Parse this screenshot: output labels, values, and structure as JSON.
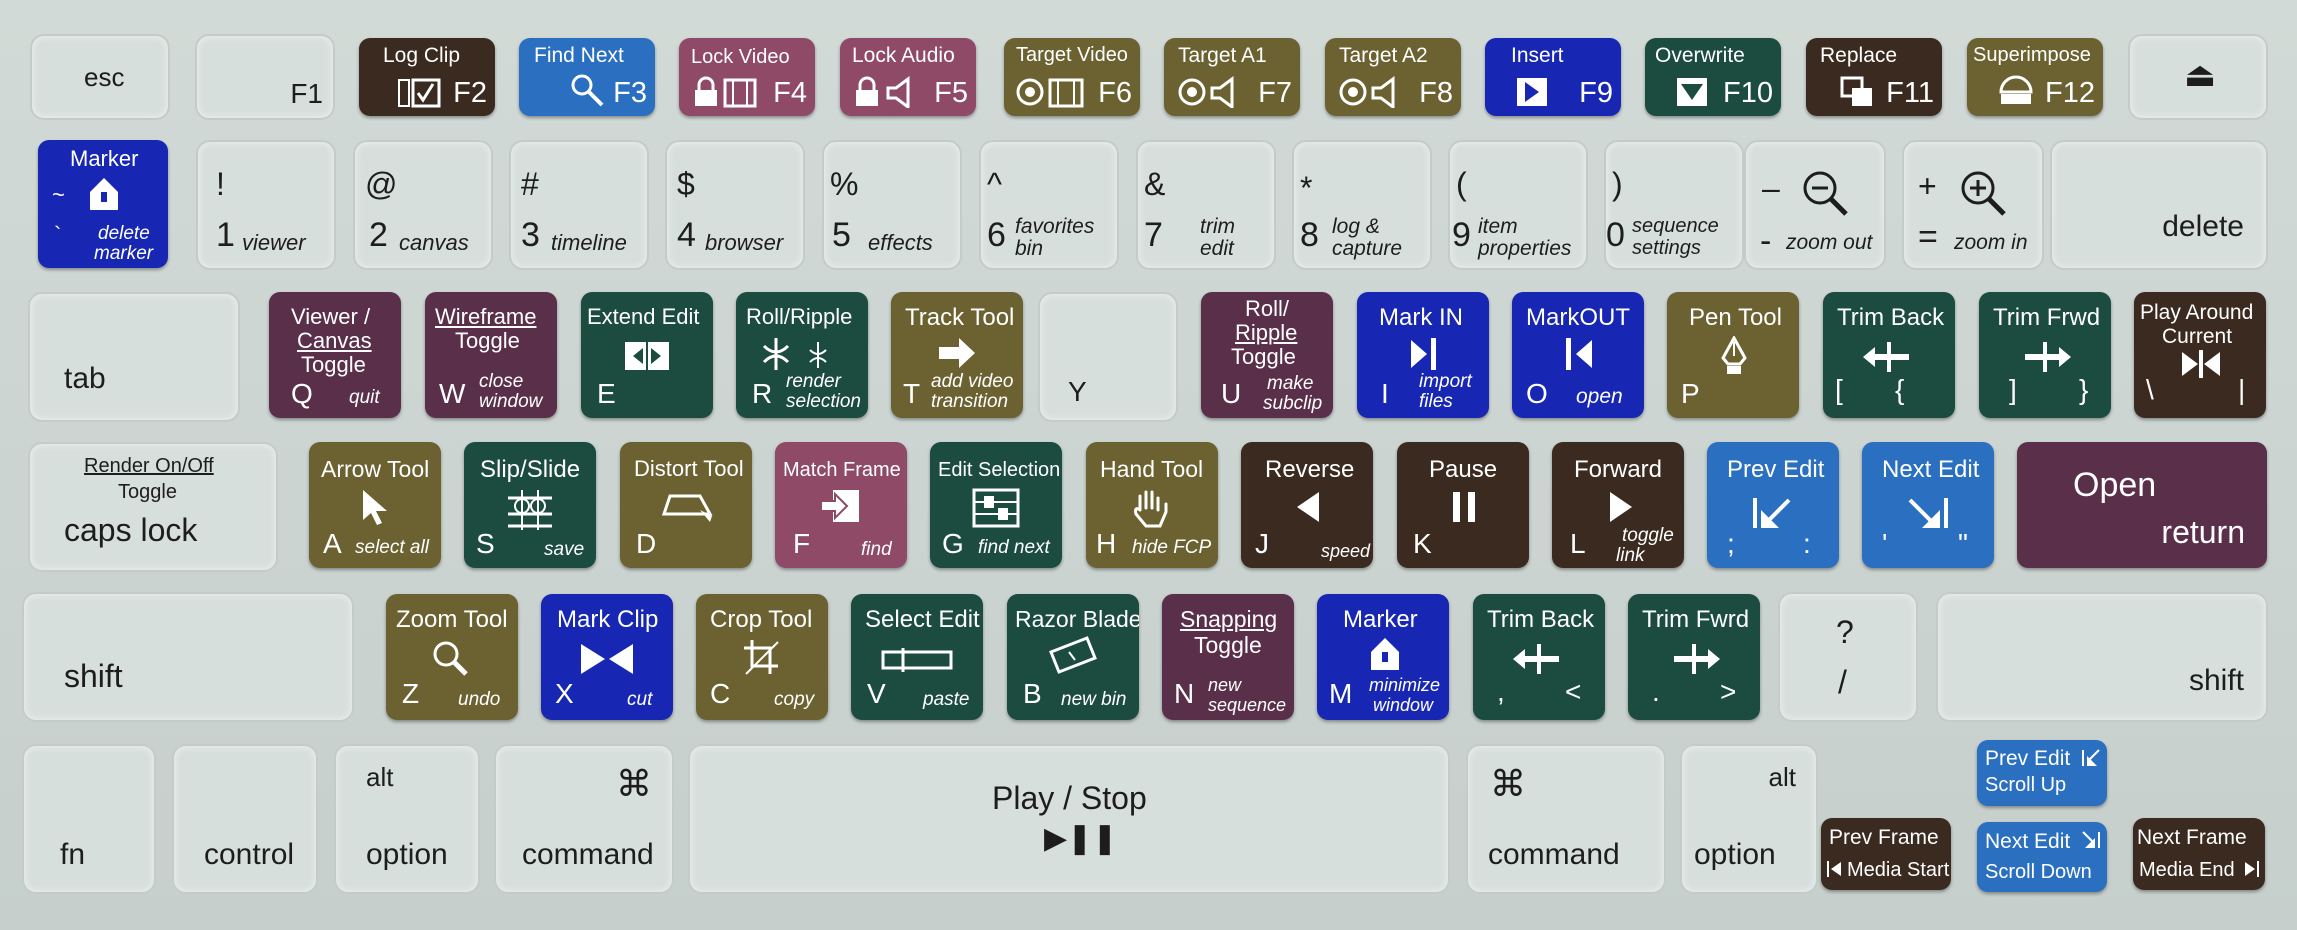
{
  "row_fn": {
    "esc": "esc",
    "f1": "F1",
    "f2": {
      "title": "Log Clip",
      "key": "F2"
    },
    "f3": {
      "title": "Find Next",
      "key": "F3"
    },
    "f4": {
      "title": "Lock Video",
      "key": "F4"
    },
    "f5": {
      "title": "Lock Audio",
      "key": "F5"
    },
    "f6": {
      "title": "Target Video",
      "key": "F6"
    },
    "f7": {
      "title": "Target A1",
      "key": "F7"
    },
    "f8": {
      "title": "Target A2",
      "key": "F8"
    },
    "f9": {
      "title": "Insert",
      "key": "F9"
    },
    "f10": {
      "title": "Overwrite",
      "key": "F10"
    },
    "f11": {
      "title": "Replace",
      "key": "F11"
    },
    "f12": {
      "title": "Superimpose",
      "key": "F12"
    },
    "eject": "⏏"
  },
  "row_num": {
    "tilde": {
      "title": "Marker",
      "top": "~",
      "bottom": "`",
      "sub1": "delete",
      "sub2": "marker"
    },
    "k1": {
      "top": "!",
      "key": "1",
      "sub": "viewer"
    },
    "k2": {
      "top": "@",
      "key": "2",
      "sub": "canvas"
    },
    "k3": {
      "top": "#",
      "key": "3",
      "sub": "timeline"
    },
    "k4": {
      "top": "$",
      "key": "4",
      "sub": "browser"
    },
    "k5": {
      "top": "%",
      "key": "5",
      "sub": "effects"
    },
    "k6": {
      "top": "^",
      "key": "6",
      "sub1": "favorites",
      "sub2": "bin"
    },
    "k7": {
      "top": "&",
      "key": "7",
      "sub1": "trim",
      "sub2": "edit"
    },
    "k8": {
      "top": "*",
      "key": "8",
      "sub1": "log &",
      "sub2": "capture"
    },
    "k9": {
      "top": "(",
      "key": "9",
      "sub1": "item",
      "sub2": "properties"
    },
    "k0": {
      "top": ")",
      "key": "0",
      "sub1": "sequence",
      "sub2": "settings"
    },
    "minus": {
      "top": "–",
      "key": "-",
      "sub": "zoom out"
    },
    "plus": {
      "top": "+",
      "key": "=",
      "sub": "zoom in"
    },
    "delete": "delete"
  },
  "row_q": {
    "tab": "tab",
    "q": {
      "t1": "Viewer /",
      "t2": "Canvas",
      "t3": "Toggle",
      "key": "Q",
      "sub": "quit"
    },
    "w": {
      "t1": "Wireframe",
      "t2": "Toggle",
      "key": "W",
      "sub1": "close",
      "sub2": "window"
    },
    "e": {
      "title": "Extend Edit",
      "key": "E"
    },
    "r": {
      "title": "Roll/Ripple",
      "key": "R",
      "sub1": "render",
      "sub2": "selection"
    },
    "t": {
      "title": "Track Tool",
      "key": "T",
      "sub1": "add video",
      "sub2": "transition"
    },
    "y": "Y",
    "u": {
      "t1": "Roll/",
      "t2": "Ripple",
      "t3": "Toggle",
      "key": "U",
      "sub1": "make",
      "sub2": "subclip"
    },
    "i": {
      "title": "Mark IN",
      "key": "I",
      "sub1": "import",
      "sub2": "files"
    },
    "o": {
      "title": "MarkOUT",
      "key": "O",
      "sub": "open"
    },
    "p": {
      "title": "Pen Tool",
      "key": "P"
    },
    "lbracket": {
      "title": "Trim Back",
      "key1": "[",
      "key2": "{"
    },
    "rbracket": {
      "title": "Trim Frwd",
      "key1": "]",
      "key2": "}"
    },
    "backslash": {
      "t1": "Play Around",
      "t2": "Current",
      "key1": "\\",
      "key2": "|"
    }
  },
  "row_a": {
    "caps": {
      "t1": "Render On/Off",
      "t2": "Toggle",
      "key": "caps lock"
    },
    "a": {
      "title": "Arrow Tool",
      "key": "A",
      "sub": "select all"
    },
    "s": {
      "title": "Slip/Slide",
      "key": "S",
      "sub": "save"
    },
    "d": {
      "title": "Distort Tool",
      "key": "D"
    },
    "f": {
      "title": "Match Frame",
      "key": "F",
      "sub": "find"
    },
    "g": {
      "title": "Edit Selection",
      "key": "G",
      "sub": "find next"
    },
    "h": {
      "title": "Hand Tool",
      "key": "H",
      "sub": "hide FCP"
    },
    "j": {
      "title": "Reverse",
      "key": "J",
      "sub": "speed"
    },
    "k": {
      "title": "Pause",
      "key": "K"
    },
    "l": {
      "title": "Forward",
      "key": "L",
      "sub1": "toggle",
      "sub2": "link"
    },
    "semi": {
      "title": "Prev Edit",
      "key1": ";",
      "key2": ":"
    },
    "quote": {
      "title": "Next Edit",
      "key1": "'",
      "key2": "\""
    },
    "return": {
      "t1": "Open",
      "t2": "return"
    }
  },
  "row_z": {
    "shift_l": "shift",
    "z": {
      "title": "Zoom Tool",
      "key": "Z",
      "sub": "undo"
    },
    "x": {
      "title": "Mark Clip",
      "key": "X",
      "sub": "cut"
    },
    "c": {
      "title": "Crop Tool",
      "key": "C",
      "sub": "copy"
    },
    "v": {
      "title": "Select Edit",
      "key": "V",
      "sub": "paste"
    },
    "b": {
      "title": "Razor Blade",
      "key": "B",
      "sub": "new bin"
    },
    "n": {
      "t1": "Snapping",
      "t2": "Toggle",
      "key": "N",
      "sub1": "new",
      "sub2": "sequence"
    },
    "m": {
      "title": "Marker",
      "key": "M",
      "sub1": "minimize",
      "sub2": "window"
    },
    "comma": {
      "title": "Trim Back",
      "key1": ",",
      "key2": "<"
    },
    "period": {
      "title": "Trim Fwrd",
      "key1": ".",
      "key2": ">"
    },
    "slash": {
      "top": "?",
      "key": "/"
    },
    "shift_r": "shift"
  },
  "row_bottom": {
    "fn": "fn",
    "control": "control",
    "option_l": {
      "top": "alt",
      "key": "option"
    },
    "command_l": {
      "top": "⌘",
      "key": "command"
    },
    "space": {
      "title": "Play / Stop",
      "glyph": "▶❚❚"
    },
    "command_r": {
      "top": "⌘",
      "key": "command"
    },
    "option_r": {
      "top": "alt",
      "key": "option"
    },
    "up": {
      "t1": "Prev Edit",
      "t2": "Scroll Up"
    },
    "left": {
      "t1": "Prev Frame",
      "t2": "Media Start"
    },
    "down": {
      "t1": "Next Edit",
      "t2": "Scroll Down"
    },
    "right": {
      "t1": "Next Frame",
      "t2": "Media End"
    }
  },
  "colors": {
    "brown": "#3b2a1f",
    "blue": "#2a6fc0",
    "mauve": "#8e4a67",
    "olive": "#6b6131",
    "navy": "#1727b3",
    "green": "#1c4b3f",
    "plum": "#5a2f49",
    "board": "#cbd4d1"
  }
}
